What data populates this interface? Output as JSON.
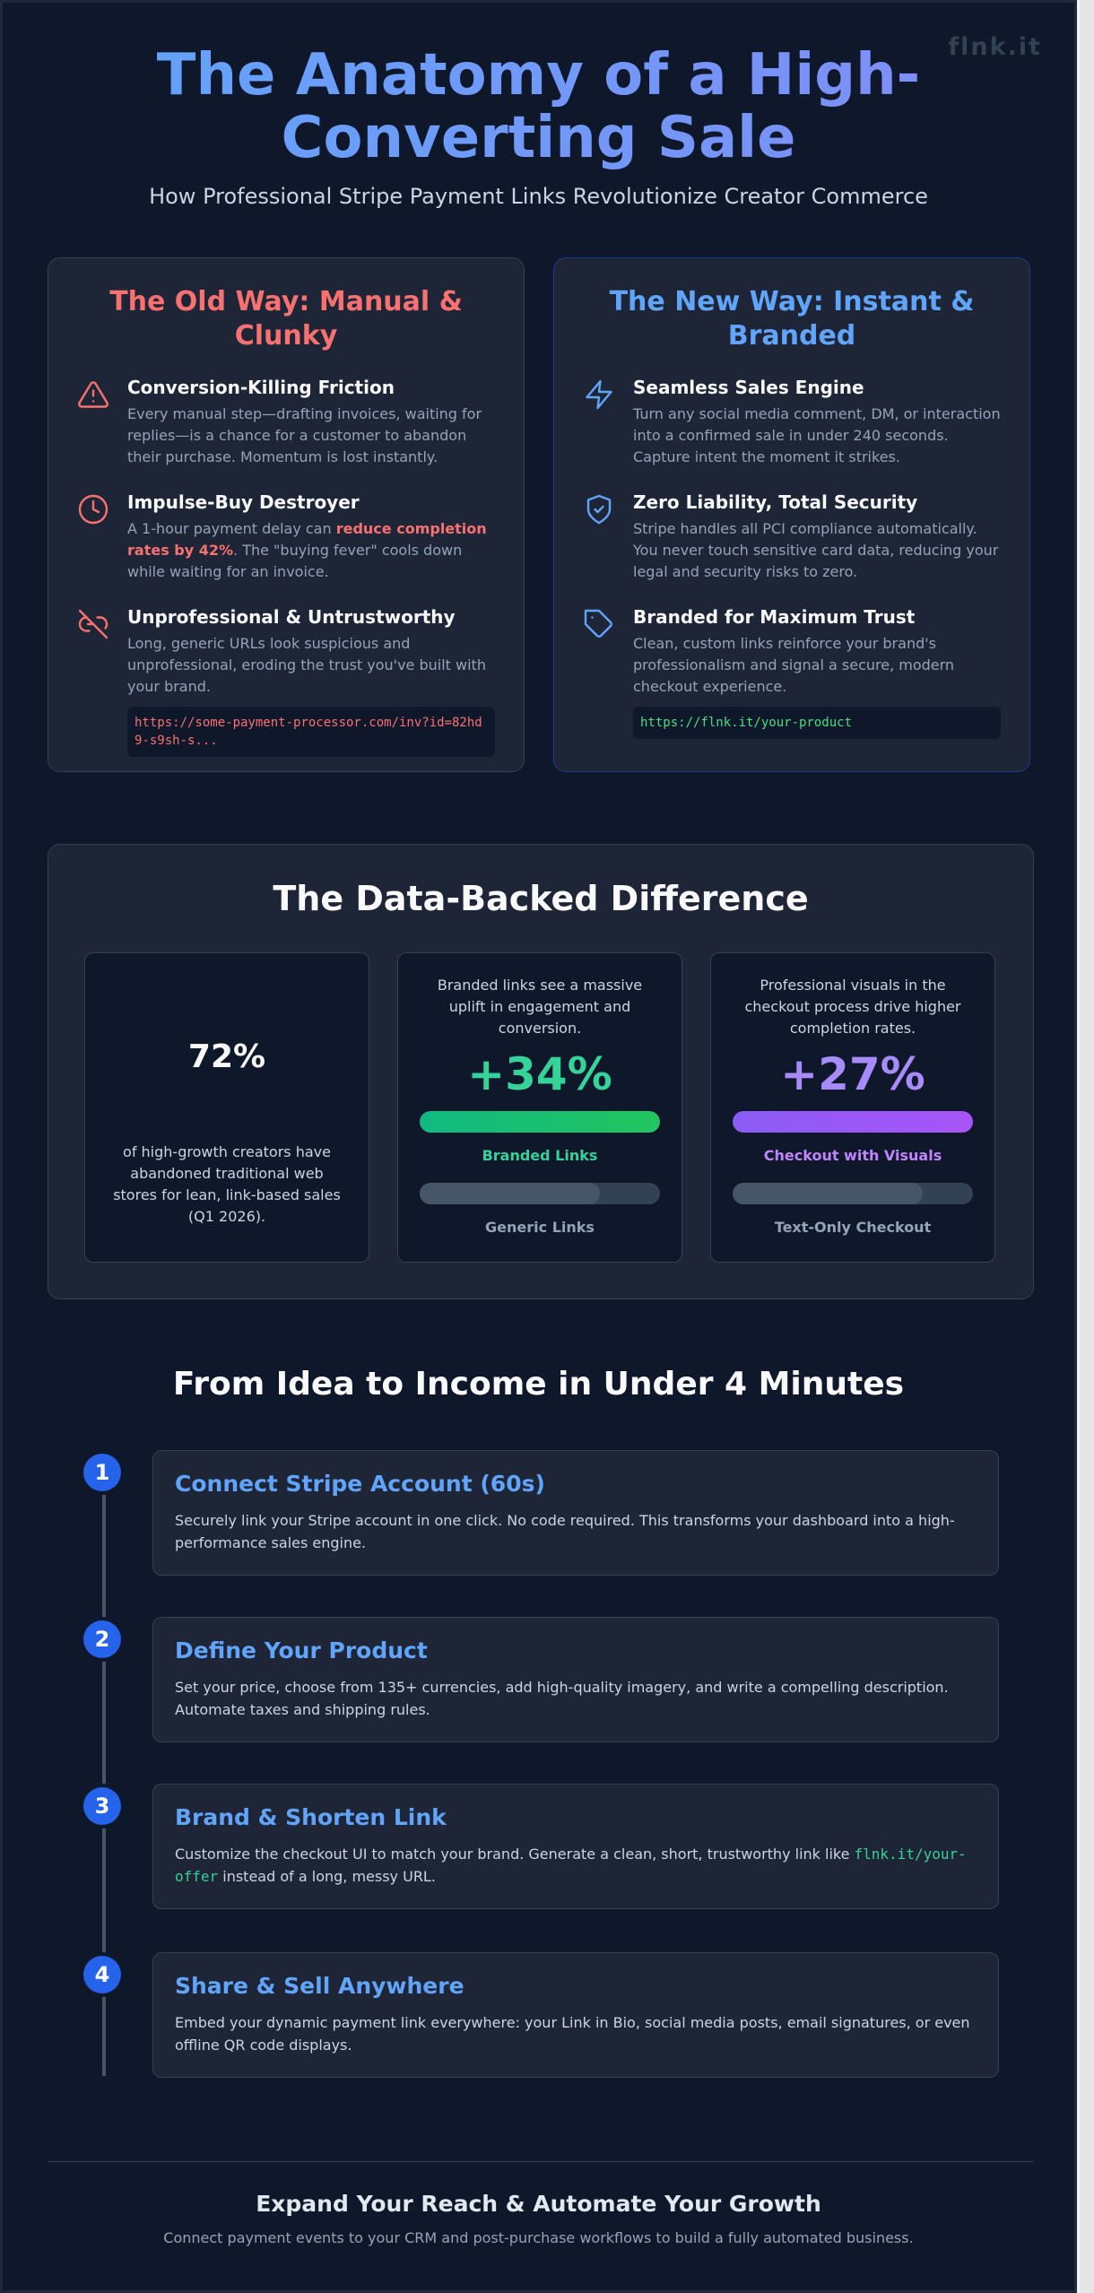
{
  "brand": {
    "watermark": "flnk.it"
  },
  "hero": {
    "title": "The Anatomy of a High-Converting Sale",
    "subtitle": "How Professional Stripe Payment Links Revolutionize Creator Commerce"
  },
  "old_way": {
    "title": "The Old Way: Manual & Clunky",
    "items": [
      {
        "icon": "warning-triangle-icon",
        "title": "Conversion-Killing Friction",
        "desc": "Every manual step—drafting invoices, waiting for replies—is a chance for a customer to abandon their purchase. Momentum is lost instantly."
      },
      {
        "icon": "clock-icon",
        "title": "Impulse-Buy Destroyer",
        "desc_before": "A 1-hour payment delay can ",
        "desc_highlight": "reduce completion rates by 42%",
        "desc_after": ". The \"buying fever\" cools down while waiting for an invoice."
      },
      {
        "icon": "broken-link-icon",
        "title": "Unprofessional & Untrustworthy",
        "desc": "Long, generic URLs look suspicious and unprofessional, eroding the trust you've built with your brand.",
        "url": "https://some-payment-processor.com/inv?id=82hd9-s9sh-s..."
      }
    ]
  },
  "new_way": {
    "title": "The New Way: Instant & Branded",
    "items": [
      {
        "icon": "lightning-icon",
        "title": "Seamless Sales Engine",
        "desc": "Turn any social media comment, DM, or interaction into a confirmed sale in under 240 seconds. Capture intent the moment it strikes."
      },
      {
        "icon": "shield-check-icon",
        "title": "Zero Liability, Total Security",
        "desc": "Stripe handles all PCI compliance automatically. You never touch sensitive card data, reducing your legal and security risks to zero."
      },
      {
        "icon": "tag-icon",
        "title": "Branded for Maximum Trust",
        "desc": "Clean, custom links reinforce your brand's professionalism and signal a secure, modern checkout experience.",
        "url": "https://flnk.it/your-product"
      }
    ]
  },
  "data_section": {
    "title": "The Data-Backed Difference",
    "stat1": {
      "value": "72%",
      "desc": "of high-growth creators have abandoned traditional web stores for lean, link-based sales (Q1 2026)."
    },
    "stat2": {
      "head": "Branded links see a massive uplift in engagement and conversion.",
      "value": "+34%",
      "bar_a_label": "Branded Links",
      "bar_a_level": 1.0,
      "bar_b_label": "Generic Links",
      "bar_b_level": 0.75
    },
    "stat3": {
      "head": "Professional visuals in the checkout process drive higher completion rates.",
      "value": "+27%",
      "bar_a_label": "Checkout with Visuals",
      "bar_a_level": 1.0,
      "bar_b_label": "Text-Only Checkout",
      "bar_b_level": 0.79
    }
  },
  "steps": {
    "title": "From Idea to Income in Under 4 Minutes",
    "items": [
      {
        "num": "1",
        "title": "Connect Stripe Account (60s)",
        "desc": "Securely link your Stripe account in one click. No code required. This transforms your dashboard into a high-performance sales engine."
      },
      {
        "num": "2",
        "title": "Define Your Product",
        "desc": "Set your price, choose from 135+ currencies, add high-quality imagery, and write a compelling description. Automate taxes and shipping rules."
      },
      {
        "num": "3",
        "title": "Brand & Shorten Link",
        "desc_before": "Customize the checkout UI to match your brand. Generate a clean, short, trustworthy link like ",
        "desc_code": "flnk.it/your-offer",
        "desc_after": " instead of a long, messy URL."
      },
      {
        "num": "4",
        "title": "Share & Sell Anywhere",
        "desc": "Embed your dynamic payment link everywhere: your Link in Bio, social media posts, email signatures, or even offline QR code displays."
      }
    ]
  },
  "footer": {
    "title": "Expand Your Reach & Automate Your Growth",
    "subtitle": "Connect payment events to your CRM and post-purchase workflows to build a fully automated business."
  },
  "colors": {
    "background": "#0f172a",
    "card": "#1e2536",
    "accent_blue": "#60a5fa",
    "accent_red": "#f87171",
    "accent_green": "#34d399",
    "accent_purple": "#a78bfa"
  }
}
